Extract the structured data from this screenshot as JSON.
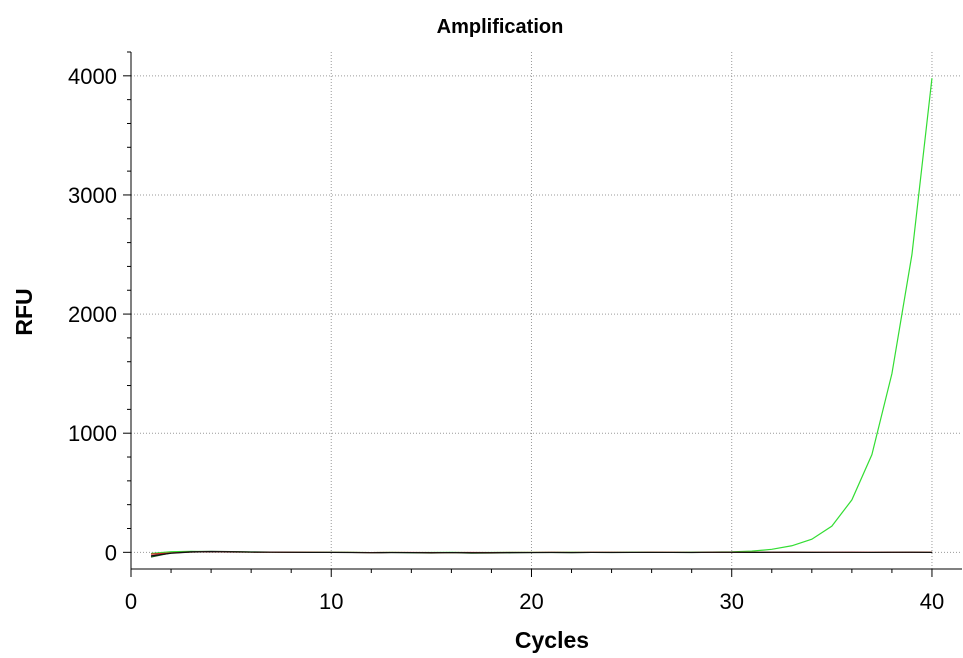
{
  "chart_data": {
    "type": "line",
    "title": "Amplification",
    "xlabel": "Cycles",
    "ylabel": "RFU",
    "xlim": [
      0,
      41.5
    ],
    "ylim": [
      -140,
      4200
    ],
    "x_ticks": [
      0,
      10,
      20,
      30,
      40
    ],
    "y_ticks": [
      0,
      1000,
      2000,
      3000,
      4000
    ],
    "grid": true,
    "legend": "none",
    "x": [
      1,
      2,
      3,
      4,
      5,
      6,
      7,
      8,
      9,
      10,
      11,
      12,
      13,
      14,
      15,
      16,
      17,
      18,
      19,
      20,
      21,
      22,
      23,
      24,
      25,
      26,
      27,
      28,
      29,
      30,
      31,
      32,
      33,
      34,
      35,
      36,
      37,
      38,
      39,
      40
    ],
    "series": [
      {
        "color": "#33dd33",
        "values": [
          -10,
          5,
          8,
          6,
          4,
          3,
          2,
          1,
          1,
          0,
          0,
          -2,
          0,
          -2,
          -1,
          0,
          -2,
          -1,
          0,
          0,
          0,
          1,
          0,
          0,
          1,
          1,
          0,
          1,
          2,
          4,
          10,
          25,
          55,
          110,
          220,
          440,
          820,
          1500,
          2500,
          3980
        ]
      },
      {
        "color": "#1a5c1a",
        "values": [
          -40,
          -5,
          5,
          8,
          6,
          3,
          2,
          1,
          0,
          0,
          -1,
          -3,
          -2,
          -4,
          -6,
          -3,
          -7,
          -6,
          -4,
          -2,
          -2,
          -3,
          -1,
          -2,
          -1,
          0,
          -1,
          -2,
          0,
          1,
          0,
          1,
          2,
          1,
          0,
          -1,
          0,
          1,
          2,
          1
        ]
      },
      {
        "color": "#dd2222",
        "values": [
          -15,
          -5,
          2,
          5,
          3,
          2,
          1,
          0,
          0,
          -1,
          -1,
          -2,
          -1,
          -1,
          -2,
          -2,
          -1,
          -2,
          -1,
          -1,
          0,
          -1,
          0,
          0,
          -1,
          0,
          0,
          -1,
          0,
          0,
          0,
          0,
          -1,
          0,
          0,
          1,
          0,
          0,
          0,
          0
        ]
      },
      {
        "color": "#111111",
        "values": [
          -30,
          -8,
          3,
          6,
          4,
          2,
          1,
          0,
          -1,
          -1,
          -2,
          -3,
          -2,
          -2,
          -3,
          -2,
          -3,
          -3,
          -2,
          -2,
          -1,
          -2,
          -1,
          -1,
          -1,
          -1,
          -1,
          -1,
          0,
          0,
          -1,
          0,
          0,
          -1,
          0,
          0,
          -1,
          0,
          0,
          -1
        ]
      }
    ]
  }
}
